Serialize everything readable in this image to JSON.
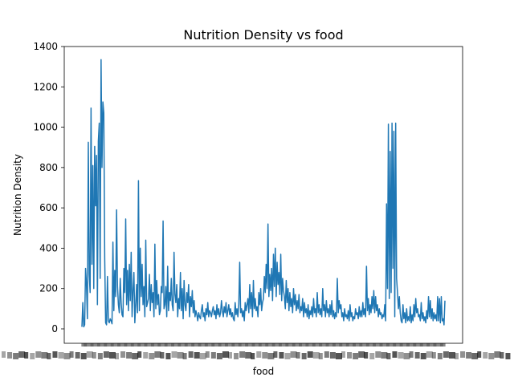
{
  "chart_data": {
    "type": "line",
    "title": "Nutrition Density vs food",
    "xlabel": "food",
    "ylabel": "Nutrition Density",
    "ylim": [
      -60,
      1400
    ],
    "yticks": [
      0,
      200,
      400,
      600,
      800,
      1000,
      1200,
      1400
    ],
    "grid": false,
    "legend": "none",
    "color": "#1f77b4",
    "x_tick_labels_note": "dense overlapping category labels (illegible)",
    "series": [
      {
        "values": [
          10,
          130,
          10,
          20,
          300,
          220,
          50,
          925,
          270,
          180,
          1095,
          320,
          810,
          200,
          905,
          610,
          860,
          120,
          930,
          1020,
          250,
          1335,
          800,
          1125,
          1070,
          350,
          30,
          20,
          260,
          40,
          30,
          50,
          40,
          25,
          430,
          90,
          290,
          160,
          590,
          210,
          120,
          80,
          250,
          130,
          70,
          60,
          300,
          180,
          545,
          120,
          290,
          90,
          320,
          140,
          380,
          60,
          190,
          280,
          30,
          120,
          220,
          80,
          735,
          90,
          400,
          160,
          320,
          120,
          210,
          60,
          440,
          110,
          130,
          150,
          270,
          90,
          220,
          130,
          180,
          60,
          420,
          100,
          240,
          120,
          170,
          70,
          90,
          210,
          180,
          535,
          100,
          120,
          210,
          60,
          310,
          90,
          180,
          140,
          250,
          120,
          90,
          380,
          170,
          130,
          220,
          60,
          150,
          100,
          280,
          90,
          200,
          50,
          240,
          120,
          90,
          180,
          130,
          220,
          60,
          160,
          110,
          190,
          80,
          140,
          60,
          90,
          70,
          40,
          80,
          60,
          50,
          90,
          120,
          60,
          80,
          40,
          100,
          70,
          130,
          60,
          90,
          80,
          60,
          90,
          110,
          70,
          90,
          50,
          120,
          70,
          100,
          60,
          80,
          140,
          90,
          60,
          110,
          80,
          130,
          60,
          90,
          120,
          70,
          100,
          60,
          80,
          50,
          40,
          130,
          70,
          100,
          60,
          120,
          330,
          80,
          100,
          60,
          90,
          40,
          130,
          90,
          120,
          150,
          80,
          220,
          100,
          180,
          60,
          240,
          100,
          150,
          90,
          110,
          60,
          180,
          120,
          200,
          90,
          130,
          150,
          260,
          180,
          320,
          200,
          520,
          160,
          270,
          190,
          300,
          140,
          370,
          210,
          400,
          160,
          330,
          220,
          280,
          170,
          370,
          140,
          250,
          190,
          160,
          100,
          240,
          130,
          200,
          90,
          180,
          110,
          150,
          80,
          200,
          120,
          170,
          90,
          140,
          100,
          170,
          80,
          110,
          90,
          150,
          60,
          130,
          80,
          100,
          60,
          120,
          50,
          90,
          70,
          110,
          60,
          150,
          80,
          100,
          60,
          180,
          80,
          120,
          70,
          100,
          60,
          200,
          90,
          120,
          60,
          140,
          80,
          100,
          60,
          120,
          70,
          140,
          60,
          90,
          50,
          80,
          60,
          250,
          80,
          140,
          100,
          120,
          60,
          80,
          40,
          100,
          60,
          70,
          50,
          90,
          40,
          120,
          60,
          80,
          40,
          60,
          50,
          100,
          70,
          80,
          50,
          110,
          60,
          90,
          60,
          130,
          70,
          100,
          60,
          310,
          90,
          150,
          70,
          120,
          80,
          160,
          100,
          190,
          80,
          160,
          90,
          120,
          60,
          100,
          70,
          80,
          50,
          70,
          60,
          120,
          40,
          620,
          200,
          1015,
          150,
          880,
          180,
          1020,
          300,
          980,
          60,
          1020,
          250,
          180,
          100,
          160,
          80,
          40,
          30,
          120,
          50,
          80,
          30,
          100,
          40,
          60,
          40,
          110,
          30,
          70,
          40,
          120,
          60,
          150,
          80,
          100,
          60,
          70,
          40,
          130,
          50,
          80,
          40,
          60,
          30,
          90,
          50,
          160,
          60,
          140,
          50,
          100,
          40,
          80,
          50,
          70,
          40,
          160,
          40,
          150,
          30,
          160,
          40,
          50,
          20,
          140
        ]
      }
    ]
  }
}
